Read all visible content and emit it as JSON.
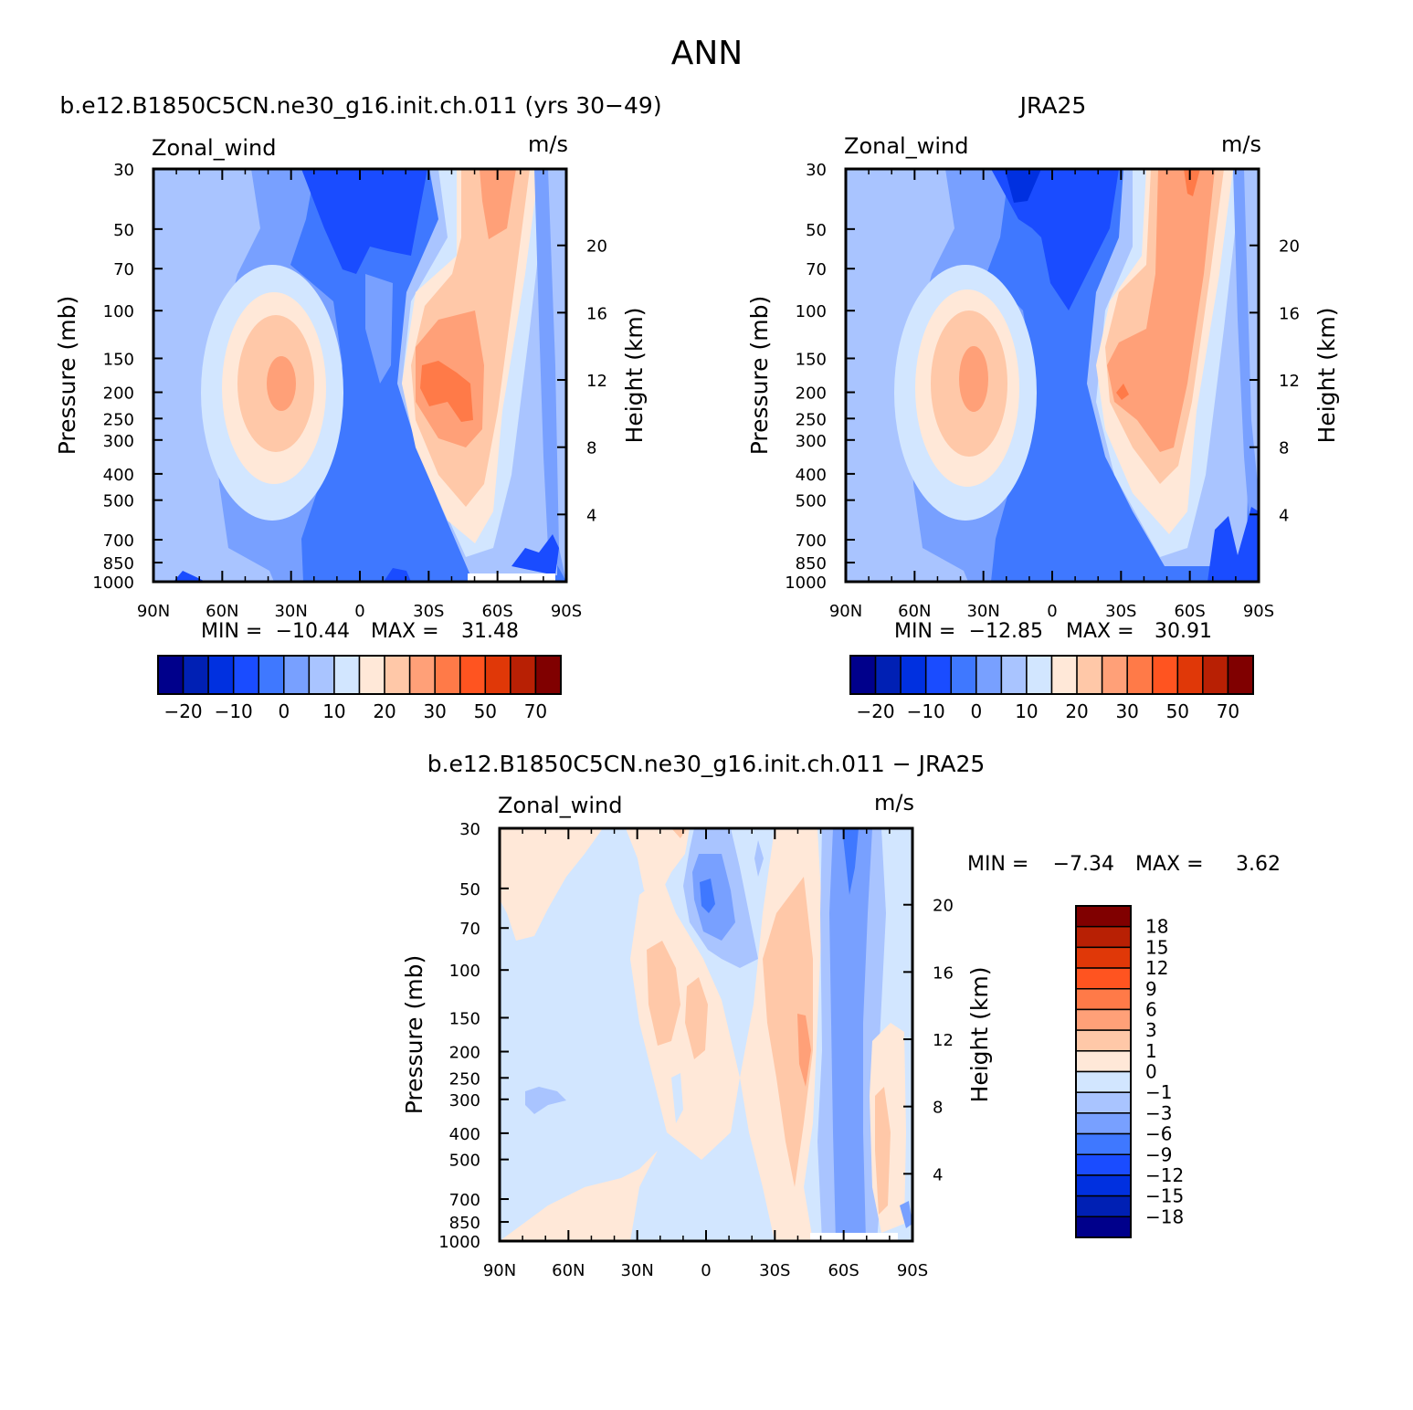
{
  "figure": {
    "title": "ANN",
    "colors": {
      "full": [
        "#00008b",
        "#0020b4",
        "#0030e0",
        "#1a4cff",
        "#3f78ff",
        "#78a0ff",
        "#a9c4ff",
        "#d2e6ff",
        "#ffe8d8",
        "#ffc8a8",
        "#ffa078",
        "#ff7a48",
        "#ff5420",
        "#e03808",
        "#b82004",
        "#800000"
      ],
      "diff": [
        "#00008b",
        "#0020b4",
        "#0030e0",
        "#1a4cff",
        "#3f78ff",
        "#78a0ff",
        "#a9c4ff",
        "#d2e6ff",
        "#ffe8d8",
        "#ffc8a8",
        "#ffa078",
        "#ff7a48",
        "#ff5420",
        "#e03808",
        "#b82004",
        "#800000"
      ]
    }
  },
  "chart_data": [
    {
      "id": "model",
      "type": "contour",
      "title": "b.e12.B1850C5CN.ne30_g16.init.ch.011 (yrs 30−49)",
      "variable": "Zonal_wind",
      "units": "m/s",
      "xlabel": "",
      "ylabel": "Pressure (mb)",
      "y2label": "Height (km)",
      "x_ticks": [
        "90N",
        "60N",
        "30N",
        "0",
        "30S",
        "60S",
        "90S"
      ],
      "x_values": [
        90,
        60,
        30,
        0,
        -30,
        -60,
        -90
      ],
      "y_ticks": [
        30,
        50,
        70,
        100,
        150,
        200,
        250,
        300,
        400,
        500,
        700,
        850,
        1000
      ],
      "y_range": [
        30,
        1000
      ],
      "y2_ticks": [
        4,
        8,
        12,
        16,
        20
      ],
      "min": -10.44,
      "max": 31.48,
      "min_label": "MIN =",
      "max_label": "MAX =",
      "min_text": "−10.44",
      "max_text": "31.48",
      "colorbar_labels": [
        "−20",
        "−10",
        "0",
        "10",
        "20",
        "30",
        "50",
        "70"
      ]
    },
    {
      "id": "obs",
      "type": "contour",
      "title": "JRA25",
      "variable": "Zonal_wind",
      "units": "m/s",
      "xlabel": "",
      "ylabel": "Pressure (mb)",
      "y2label": "Height (km)",
      "x_ticks": [
        "90N",
        "60N",
        "30N",
        "0",
        "30S",
        "60S",
        "90S"
      ],
      "x_values": [
        90,
        60,
        30,
        0,
        -30,
        -60,
        -90
      ],
      "y_ticks": [
        30,
        50,
        70,
        100,
        150,
        200,
        250,
        300,
        400,
        500,
        700,
        850,
        1000
      ],
      "y_range": [
        30,
        1000
      ],
      "y2_ticks": [
        4,
        8,
        12,
        16,
        20
      ],
      "min": -12.85,
      "max": 30.91,
      "min_label": "MIN =",
      "max_label": "MAX =",
      "min_text": "−12.85",
      "max_text": "30.91",
      "colorbar_labels": [
        "−20",
        "−10",
        "0",
        "10",
        "20",
        "30",
        "50",
        "70"
      ]
    },
    {
      "id": "diff",
      "type": "contour",
      "title": "b.e12.B1850C5CN.ne30_g16.init.ch.011 − JRA25",
      "variable": "Zonal_wind",
      "units": "m/s",
      "xlabel": "",
      "ylabel": "Pressure (mb)",
      "y2label": "Height (km)",
      "x_ticks": [
        "90N",
        "60N",
        "30N",
        "0",
        "30S",
        "60S",
        "90S"
      ],
      "x_values": [
        90,
        60,
        30,
        0,
        -30,
        -60,
        -90
      ],
      "y_ticks": [
        30,
        50,
        70,
        100,
        150,
        200,
        250,
        300,
        400,
        500,
        700,
        850,
        1000
      ],
      "y_range": [
        30,
        1000
      ],
      "y2_ticks": [
        4,
        8,
        12,
        16,
        20
      ],
      "min": -7.34,
      "max": 3.62,
      "min_label": "MIN =",
      "max_label": "MAX =",
      "min_text": "−7.34",
      "max_text": "3.62",
      "colorbar_labels": [
        "18",
        "15",
        "12",
        "9",
        "6",
        "3",
        "1",
        "0",
        "−1",
        "−3",
        "−6",
        "−9",
        "−12",
        "−15",
        "−18"
      ]
    }
  ]
}
